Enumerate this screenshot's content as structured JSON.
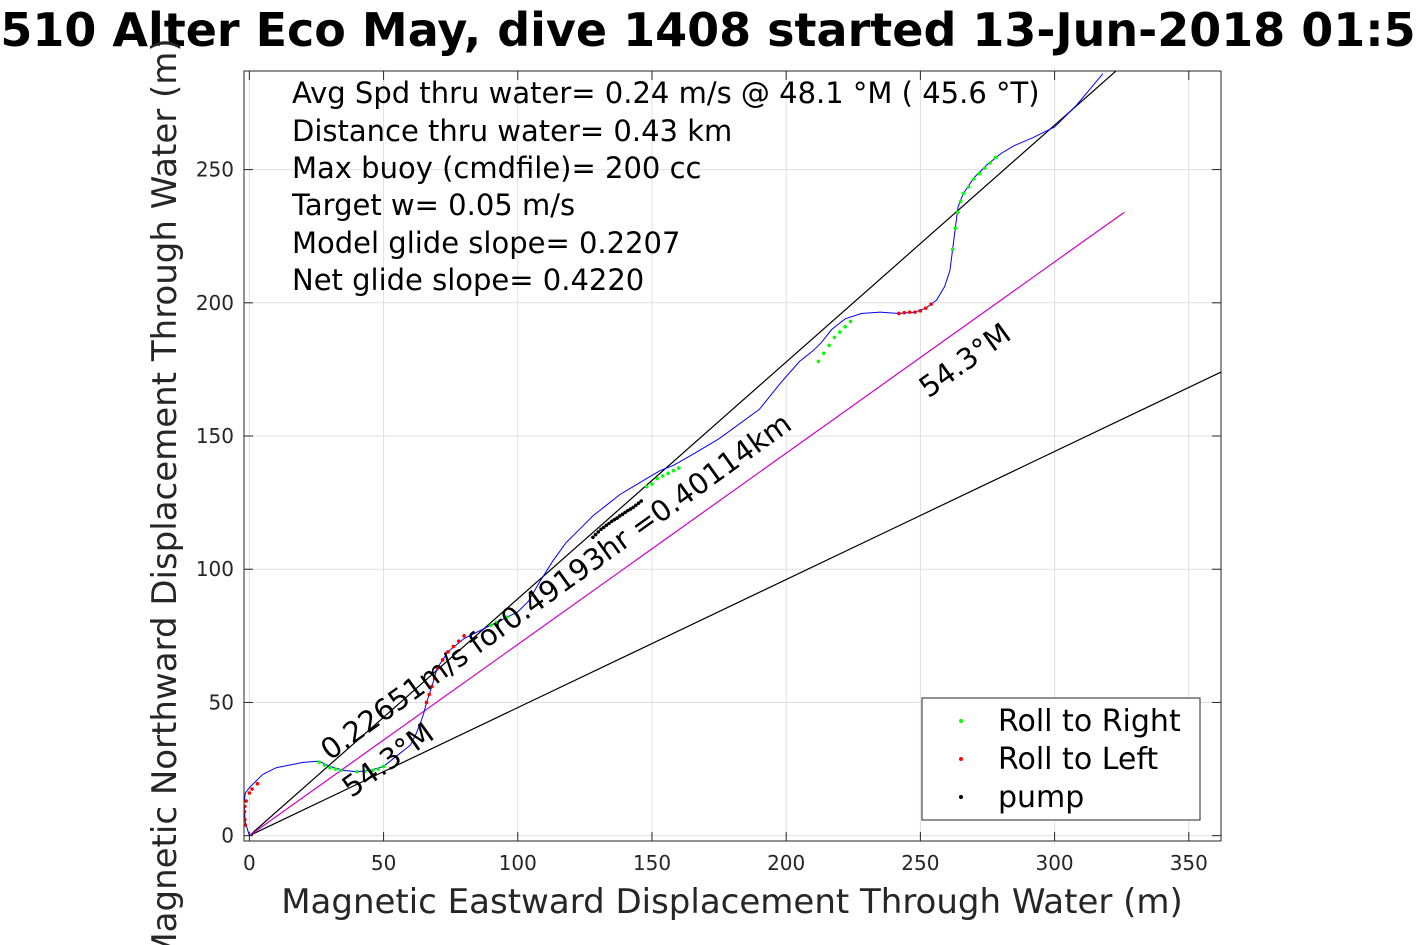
{
  "chart_data": {
    "type": "line",
    "title": "510 Alter Eco May, dive 1408 started 13-Jun-2018 01:5",
    "xlabel": "Magnetic Eastward Displacement Through Water (m)",
    "ylabel": "Magnetic Northward Displacement Through Water (m)",
    "xlim": [
      -2,
      362
    ],
    "ylim": [
      -2,
      287
    ],
    "xticks": [
      0,
      50,
      100,
      150,
      200,
      250,
      300,
      350
    ],
    "yticks": [
      0,
      50,
      100,
      150,
      200,
      250
    ],
    "xtick_labels": [
      "0",
      "50",
      "100",
      "150",
      "200",
      "250",
      "300",
      "350"
    ],
    "ytick_labels": [
      "0",
      "50",
      "100",
      "150",
      "200",
      "250"
    ],
    "grid": true,
    "legend_position": "bottom-right",
    "legend": [
      {
        "label": "Roll to Right",
        "color": "#00ff00"
      },
      {
        "label": "Roll to Left",
        "color": "#ff0000"
      },
      {
        "label": "pump",
        "color": "#000000"
      }
    ],
    "stats": [
      "Avg Spd thru water=  0.24 m/s @  48.1 °M ( 45.6 °T)",
      "Distance thru water=  0.43 km",
      "Max buoy (cmdfile)= 200 cc",
      "Target w= 0.05 m/s",
      "Model glide slope= 0.2207",
      "Net glide slope= 0.4220"
    ],
    "rotated_annotations": [
      {
        "text": "0.22651m/s for0.49193hr =0.40114km",
        "x": 30,
        "y": 28,
        "angle_deg": 35.7
      },
      {
        "text": "54.3°M",
        "x": 38,
        "y": 14,
        "angle_deg": 35.7
      },
      {
        "text": "54.3°M",
        "x": 253,
        "y": 164,
        "angle_deg": 35.7
      }
    ],
    "reference_lines": [
      {
        "name": "upper bound",
        "x": [
          0,
          405
        ],
        "y": [
          0,
          360
        ],
        "color": "#000000"
      },
      {
        "name": "lower bound",
        "x": [
          0,
          362
        ],
        "y": [
          0,
          174
        ],
        "color": "#000000"
      },
      {
        "name": "mean track",
        "x": [
          0,
          326
        ],
        "y": [
          0,
          234
        ],
        "color": "#cc00cc"
      }
    ],
    "series": [
      {
        "type": "line",
        "color": "#0000ff",
        "x": [
          0,
          -1.5,
          -2,
          -1.5,
          0,
          2,
          3,
          5,
          10,
          20,
          26,
          30,
          35,
          40,
          45,
          50,
          55,
          60,
          62,
          64,
          65,
          66,
          68,
          70,
          74,
          80,
          90,
          96,
          100,
          104,
          108,
          113,
          118,
          123,
          128,
          133,
          138,
          143,
          148,
          153,
          158,
          165,
          175,
          190,
          198,
          205,
          210,
          213,
          217,
          222,
          228,
          235,
          242,
          248,
          252,
          256,
          259,
          261,
          262,
          263,
          264,
          266,
          270,
          275,
          280,
          285,
          292,
          300,
          308,
          313,
          318
        ],
        "y": [
          0,
          5,
          12,
          16,
          18,
          20,
          21,
          23,
          25.5,
          27.5,
          28,
          26,
          24.5,
          24,
          24.5,
          26,
          30,
          34,
          38,
          43,
          46,
          50,
          56,
          63,
          69,
          74,
          79,
          82,
          84,
          88,
          95,
          103,
          110,
          115,
          120,
          124,
          128,
          131,
          134,
          137,
          139,
          143,
          149,
          160,
          170,
          178,
          182,
          185,
          190,
          194,
          196,
          196.5,
          196,
          196.5,
          198,
          201,
          206,
          212,
          220,
          228,
          236,
          241,
          247,
          252,
          256,
          259,
          262,
          266,
          274,
          280,
          286
        ]
      },
      {
        "type": "scatter",
        "color": "#00ff00",
        "name": "Roll to Right",
        "x": [
          26,
          28,
          30,
          32,
          34,
          40,
          43,
          46,
          48,
          50,
          90,
          92,
          96,
          99,
          148,
          150,
          152,
          154,
          156,
          158,
          160,
          212,
          214,
          216,
          218,
          220,
          222,
          224,
          262,
          263,
          264,
          265,
          266,
          268,
          270,
          272,
          274,
          276,
          278
        ],
        "y": [
          27.6,
          26.5,
          25.5,
          25,
          24.5,
          24,
          24.2,
          24.5,
          25,
          26,
          79,
          80,
          82,
          83.5,
          131,
          132,
          134,
          135,
          136,
          137,
          138,
          178,
          181,
          184,
          187,
          189,
          191,
          193,
          220,
          228,
          234,
          238,
          241,
          243.5,
          246.5,
          248.5,
          250.5,
          252.5,
          254.5
        ]
      },
      {
        "type": "scatter",
        "color": "#ff0000",
        "name": "Roll to Left",
        "x": [
          -1.5,
          -1.7,
          -1.8,
          -1.7,
          -1.2,
          0,
          1,
          3,
          66,
          67,
          68,
          69,
          70,
          72,
          74,
          76,
          78,
          80,
          242,
          244,
          246,
          248,
          250,
          252,
          254
        ],
        "y": [
          4,
          6,
          9,
          11,
          13,
          16,
          17.5,
          19.5,
          50,
          53,
          56,
          59,
          63,
          66,
          69,
          71,
          73,
          75,
          196,
          196.3,
          196.5,
          196.5,
          197,
          198,
          199.5
        ]
      },
      {
        "type": "scatter",
        "color": "#000000",
        "name": "pump",
        "x": [
          128,
          129,
          130,
          131,
          132,
          133,
          134,
          135,
          136,
          137,
          138,
          139,
          140,
          141,
          142,
          143,
          144,
          145,
          146
        ],
        "y": [
          112,
          113,
          114,
          115,
          115.7,
          116.5,
          117.2,
          118,
          118.6,
          119.2,
          120,
          120.6,
          121.3,
          122,
          122.6,
          123.2,
          124,
          124.8,
          125.6
        ]
      }
    ]
  }
}
